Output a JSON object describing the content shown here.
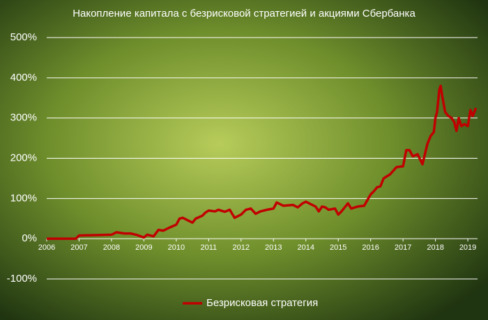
{
  "chart_data": {
    "type": "line",
    "title": "Накопление капитала с безрисковой стратегией и акциями Сбербанка",
    "x": [
      2006.0,
      2006.9,
      2007.0,
      2007.5,
      2008.0,
      2008.15,
      2008.4,
      2008.6,
      2008.8,
      2009.0,
      2009.1,
      2009.3,
      2009.45,
      2009.6,
      2009.8,
      2010.0,
      2010.1,
      2010.2,
      2010.3,
      2010.5,
      2010.6,
      2010.8,
      2010.9,
      2011.0,
      2011.2,
      2011.3,
      2011.5,
      2011.65,
      2011.8,
      2012.0,
      2012.15,
      2012.3,
      2012.45,
      2012.6,
      2012.8,
      2013.0,
      2013.1,
      2013.3,
      2013.6,
      2013.75,
      2013.9,
      2014.0,
      2014.1,
      2014.3,
      2014.4,
      2014.5,
      2014.6,
      2014.7,
      2014.9,
      2015.0,
      2015.1,
      2015.2,
      2015.3,
      2015.4,
      2015.6,
      2015.8,
      2016.0,
      2016.1,
      2016.2,
      2016.3,
      2016.4,
      2016.6,
      2016.8,
      2017.0,
      2017.1,
      2017.2,
      2017.3,
      2017.45,
      2017.6,
      2017.75,
      2017.85,
      2017.95,
      2018.0,
      2018.05,
      2018.12,
      2018.16,
      2018.22,
      2018.3,
      2018.4,
      2018.5,
      2018.58,
      2018.65,
      2018.72,
      2018.8,
      2018.9,
      2019.0,
      2019.08,
      2019.15,
      2019.25
    ],
    "series": [
      {
        "name": "Безрисковая стратегия",
        "color": "#c00000",
        "values": [
          0,
          0,
          8,
          9,
          10,
          16,
          13,
          13,
          9,
          3,
          10,
          6,
          22,
          20,
          28,
          35,
          50,
          52,
          48,
          40,
          50,
          57,
          65,
          70,
          68,
          72,
          67,
          72,
          52,
          60,
          72,
          75,
          62,
          68,
          72,
          75,
          90,
          82,
          84,
          78,
          88,
          92,
          88,
          80,
          68,
          80,
          78,
          72,
          75,
          60,
          68,
          78,
          88,
          75,
          80,
          82,
          110,
          118,
          128,
          130,
          150,
          160,
          178,
          180,
          220,
          220,
          205,
          210,
          185,
          235,
          255,
          265,
          300,
          315,
          370,
          380,
          350,
          315,
          305,
          300,
          290,
          268,
          300,
          280,
          285,
          280,
          320,
          305,
          325
        ]
      }
    ],
    "xlim": [
      2006,
      2019.3
    ],
    "xticks": [
      2006,
      2007,
      2008,
      2009,
      2010,
      2011,
      2012,
      2013,
      2014,
      2015,
      2016,
      2017,
      2018,
      2019
    ],
    "ylim": [
      -100,
      500
    ],
    "yticks": [
      {
        "value": -100,
        "label": "-100%"
      },
      {
        "value": 0,
        "label": "0%"
      },
      {
        "value": 100,
        "label": "100%"
      },
      {
        "value": 200,
        "label": "200%"
      },
      {
        "value": 300,
        "label": "300%"
      },
      {
        "value": 400,
        "label": "400%"
      },
      {
        "value": 500,
        "label": "500%"
      }
    ],
    "grid": true,
    "legend": "bottom"
  }
}
